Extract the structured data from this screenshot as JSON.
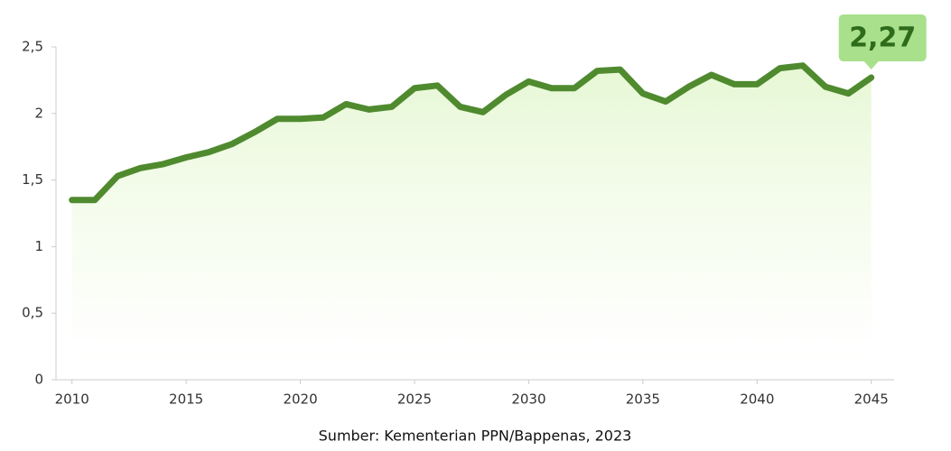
{
  "chart_data": {
    "type": "line",
    "x": [
      2010,
      2011,
      2012,
      2013,
      2014,
      2015,
      2016,
      2017,
      2018,
      2019,
      2020,
      2021,
      2022,
      2023,
      2024,
      2025,
      2026,
      2027,
      2028,
      2029,
      2030,
      2031,
      2032,
      2033,
      2034,
      2035,
      2036,
      2037,
      2038,
      2039,
      2040,
      2041,
      2042,
      2043,
      2044,
      2045
    ],
    "values": [
      1.35,
      1.35,
      1.53,
      1.59,
      1.62,
      1.67,
      1.71,
      1.77,
      1.86,
      1.96,
      1.96,
      1.97,
      2.07,
      2.03,
      2.05,
      2.19,
      2.21,
      2.05,
      2.01,
      2.14,
      2.24,
      2.19,
      2.19,
      2.32,
      2.33,
      2.15,
      2.09,
      2.2,
      2.29,
      2.22,
      2.22,
      2.34,
      2.36,
      2.2,
      2.15,
      2.27
    ],
    "value_labels": [
      null,
      null,
      null,
      null,
      null,
      null,
      null,
      null,
      null,
      null,
      null,
      null,
      null,
      null,
      null,
      null,
      null,
      null,
      null,
      null,
      null,
      null,
      null,
      null,
      null,
      null,
      null,
      null,
      null,
      null,
      null,
      null,
      null,
      null,
      null,
      "2,27"
    ],
    "color": "#4f8a2f",
    "xlim": [
      2009.3,
      2046
    ],
    "xticks": [
      2010,
      2015,
      2020,
      2025,
      2030,
      2035,
      2040,
      2045
    ],
    "ylim": [
      0,
      2.5
    ],
    "yticks": [
      0,
      {
        "value": 0.5,
        "label": "0,5"
      },
      1,
      {
        "value": 1.5,
        "label": "1,5"
      },
      2,
      {
        "value": 2.5,
        "label": "2,5"
      }
    ],
    "source": "Sumber: Kementerian PPN/Bappenas, 2023"
  }
}
